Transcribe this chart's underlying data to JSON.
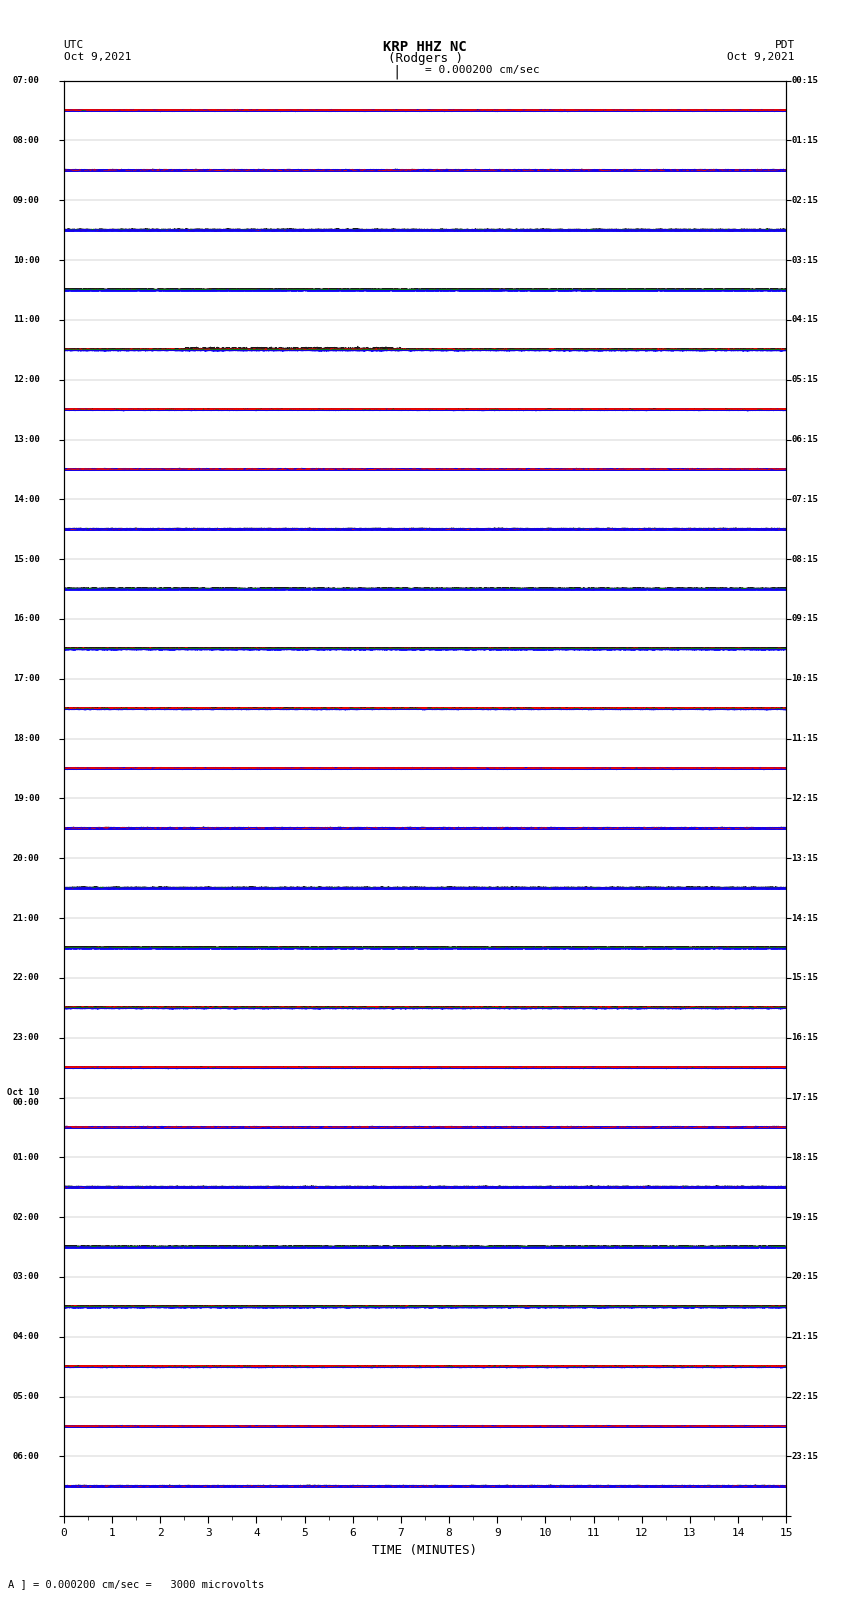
{
  "title_line1": "KRP HHZ NC",
  "title_line2": "(Rodgers )",
  "scale_label": "= 0.000200 cm/sec",
  "utc_label": "UTC\nOct 9,2021",
  "pdt_label": "PDT\nOct 9,2021",
  "bottom_label": "A ] = 0.000200 cm/sec =   3000 microvolts",
  "xlabel": "TIME (MINUTES)",
  "left_times": [
    "07:00",
    "08:00",
    "09:00",
    "10:00",
    "11:00",
    "12:00",
    "13:00",
    "14:00",
    "15:00",
    "16:00",
    "17:00",
    "18:00",
    "19:00",
    "20:00",
    "21:00",
    "22:00",
    "23:00",
    "Oct 10\n00:00",
    "01:00",
    "02:00",
    "03:00",
    "04:00",
    "05:00",
    "06:00"
  ],
  "right_times": [
    "00:15",
    "01:15",
    "02:15",
    "03:15",
    "04:15",
    "05:15",
    "06:15",
    "07:15",
    "08:15",
    "09:15",
    "10:15",
    "11:15",
    "12:15",
    "13:15",
    "14:15",
    "15:15",
    "16:15",
    "17:15",
    "18:15",
    "19:15",
    "20:15",
    "21:15",
    "22:15",
    "23:15"
  ],
  "n_rows": 24,
  "traces_per_row": 6,
  "minutes": 15,
  "sample_rate": 100,
  "colors": [
    "black",
    "red",
    "blue",
    "green",
    "red",
    "blue"
  ],
  "background_color": "white",
  "noise_amplitude": 0.35,
  "fig_width": 8.5,
  "fig_height": 16.13,
  "dpi": 100
}
